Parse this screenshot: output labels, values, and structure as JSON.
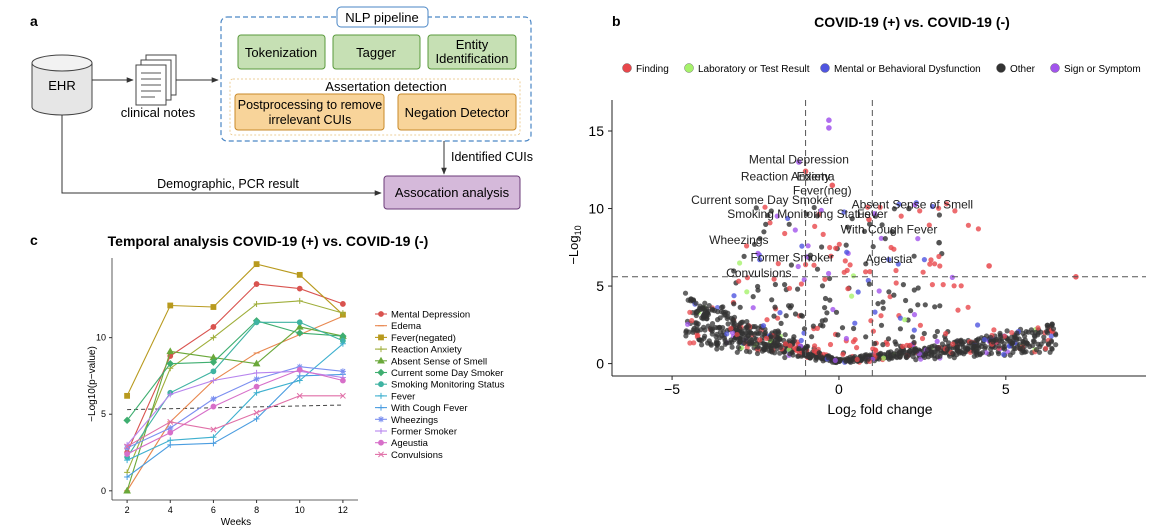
{
  "panels": {
    "a": {
      "label": "a",
      "ehr": "EHR",
      "clinical_notes": "clinical notes",
      "pipeline_title": "NLP pipeline",
      "tokenization": "Tokenization",
      "tagger": "Tagger",
      "entity_line1": "Entity",
      "entity_line2": "Identification",
      "assertion_title": "Assertation detection",
      "postproc_line1": "Postprocessing to remove",
      "postproc_line2": "irrelevant CUIs",
      "negation": "Negation Detector",
      "identified": "Identified CUIs",
      "demographic": "Demographic, PCR result",
      "association": "Assocation analysis"
    },
    "b": {
      "label": "b"
    },
    "c": {
      "label": "c"
    }
  },
  "chart_data": [
    {
      "type": "scatter",
      "title": "COVID-19 (+) vs. COVID-19 (-)",
      "xlabel": "Log₂ fold change",
      "ylabel": "−Log₁₀",
      "xlim": [
        -6.8,
        9.2
      ],
      "ylim": [
        -0.8,
        17
      ],
      "xticks": [
        -5,
        0,
        5
      ],
      "yticks": [
        0,
        5,
        10,
        15
      ],
      "threshold_x": [
        -1,
        1
      ],
      "threshold_y": 5.6,
      "legend_position": "top",
      "series": [
        {
          "name": "Finding",
          "color": "#e8474b"
        },
        {
          "name": "Laboratory or Test Result",
          "color": "#a6f26b"
        },
        {
          "name": "Mental or Behavioral Dysfunction",
          "color": "#4f55e0"
        },
        {
          "name": "Other",
          "color": "#333333"
        },
        {
          "name": "Sign or Symptom",
          "color": "#a154ec"
        }
      ],
      "annotations": [
        {
          "text": "Mental Depression",
          "x": -1.2,
          "y": 12.9
        },
        {
          "text": "Reaction Anxiety",
          "x": -1.6,
          "y": 11.8
        },
        {
          "text": "Edema",
          "x": -0.7,
          "y": 11.8
        },
        {
          "text": "Fever(neg)",
          "x": -0.5,
          "y": 10.9
        },
        {
          "text": "Current some Day Smoker",
          "x": -2.3,
          "y": 10.3
        },
        {
          "text": "Absent Sense of Smell",
          "x": 2.2,
          "y": 10.0
        },
        {
          "text": "Smoking Monitoring Status",
          "x": -1.2,
          "y": 9.4
        },
        {
          "text": "Fever",
          "x": 1.0,
          "y": 9.4
        },
        {
          "text": "With Cough Fever",
          "x": 1.5,
          "y": 8.4
        },
        {
          "text": "Wheezings",
          "x": -3.0,
          "y": 7.7
        },
        {
          "text": "Former Smoker",
          "x": -1.4,
          "y": 6.6
        },
        {
          "text": "Ageustia",
          "x": 1.5,
          "y": 6.5
        },
        {
          "text": "Convulsions",
          "x": -2.4,
          "y": 5.6
        }
      ]
    },
    {
      "type": "line",
      "title": "Temporal analysis COVID-19 (+) vs. COVID-19 (-)",
      "xlabel": "Weeks",
      "ylabel": "−Log10(p−value)",
      "x": [
        2,
        4,
        6,
        8,
        10,
        12
      ],
      "xlim": [
        1.3,
        12.7
      ],
      "ylim": [
        -0.6,
        15.2
      ],
      "yticks": [
        0,
        5,
        10
      ],
      "threshold": [
        5.3,
        5.6
      ],
      "legend_position": "right",
      "series": [
        {
          "name": "Mental Depression",
          "color": "#d9534f",
          "marker": "circle",
          "values": [
            2.5,
            8.8,
            10.7,
            13.5,
            13.2,
            12.2
          ]
        },
        {
          "name": "Edema",
          "color": "#e8874f",
          "marker": "dash",
          "values": [
            0,
            4.5,
            7.2,
            9.0,
            10.2,
            11.4
          ]
        },
        {
          "name": "Fever(negated)",
          "color": "#b89a1e",
          "marker": "square",
          "values": [
            6.2,
            12.1,
            12.0,
            14.8,
            14.1,
            11.5
          ]
        },
        {
          "name": "Reaction Anxiety",
          "color": "#9fae3a",
          "marker": "plus",
          "values": [
            1.2,
            8.0,
            10.0,
            12.2,
            12.4,
            11.6
          ]
        },
        {
          "name": "Absent Sense of Smell",
          "color": "#6aa83a",
          "marker": "triangle",
          "values": [
            0,
            9.1,
            8.7,
            8.3,
            10.7,
            10.1
          ]
        },
        {
          "name": "Current some Day Smoker",
          "color": "#3fae70",
          "marker": "diamond",
          "values": [
            4.6,
            8.3,
            8.4,
            11.1,
            10.3,
            10.1
          ]
        },
        {
          "name": "Smoking Monitoring Status",
          "color": "#3fb3a2",
          "marker": "circle",
          "values": [
            2.2,
            6.4,
            7.8,
            11.0,
            11.0,
            9.8
          ]
        },
        {
          "name": "Fever",
          "color": "#3eb0cf",
          "marker": "plus",
          "values": [
            2.0,
            3.3,
            3.5,
            6.4,
            7.2,
            9.6
          ]
        },
        {
          "name": "With Cough Fever",
          "color": "#4b9de0",
          "marker": "plus",
          "values": [
            0.9,
            3.0,
            3.1,
            4.7,
            7.5,
            7.6
          ]
        },
        {
          "name": "Wheezings",
          "color": "#7b8ff0",
          "marker": "star",
          "values": [
            2.8,
            4.1,
            6.0,
            7.3,
            8.1,
            7.8
          ]
        },
        {
          "name": "Former Smoker",
          "color": "#b784ee",
          "marker": "plus",
          "values": [
            3.0,
            6.3,
            7.2,
            7.7,
            7.8,
            7.4
          ]
        },
        {
          "name": "Ageustia",
          "color": "#d76fc9",
          "marker": "circle",
          "values": [
            2.4,
            3.8,
            5.5,
            6.8,
            7.9,
            7.2
          ]
        },
        {
          "name": "Convulsions",
          "color": "#e06fa7",
          "marker": "x",
          "values": [
            2.9,
            4.5,
            4.0,
            5.1,
            6.2,
            6.2
          ]
        }
      ]
    }
  ]
}
